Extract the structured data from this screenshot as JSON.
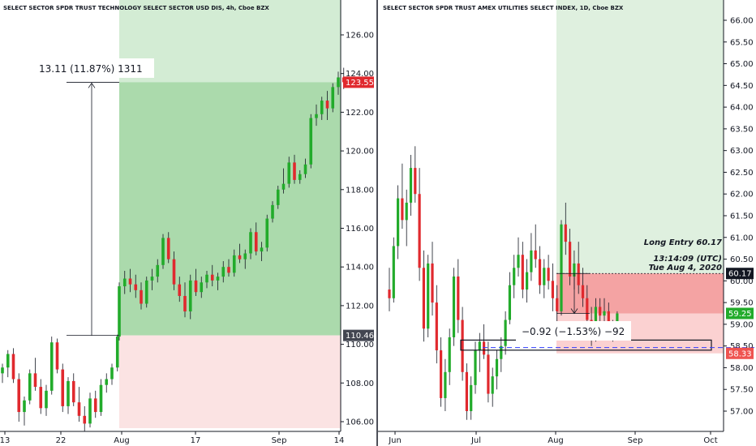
{
  "chart_data": [
    {
      "type": "candlestick",
      "title": "SELECT SECTOR SPDR TRUST TECHNOLOGY SELECT SECTOR USD DIS, 4h, Cboe BZX",
      "y_ticks": [
        "106.00",
        "108.00",
        "110.00",
        "112.00",
        "114.00",
        "116.00",
        "118.00",
        "120.00",
        "122.00",
        "124.00",
        "126.00"
      ],
      "x_ticks": [
        "13",
        "22",
        "Aug",
        "17",
        "Sep",
        "14"
      ],
      "ylim": [
        105.5,
        127.5
      ],
      "last_price": 123.55,
      "last_price_label": "123.55",
      "entry_price": 110.46,
      "entry_price_label": "110.46",
      "measure_text": "13.11 (11.87%) 1311",
      "position": {
        "entry": 110.46,
        "target": 126.0,
        "top_price": 127.5,
        "stop": 105.5
      },
      "candles": [
        [
          108.5,
          109.0,
          108.0,
          108.8
        ],
        [
          108.8,
          109.7,
          108.3,
          109.5
        ],
        [
          109.5,
          109.8,
          108.0,
          108.2
        ],
        [
          108.2,
          108.5,
          106.0,
          106.5
        ],
        [
          106.5,
          107.3,
          105.8,
          107.1
        ],
        [
          107.1,
          108.7,
          106.9,
          108.5
        ],
        [
          108.5,
          109.3,
          107.6,
          107.8
        ],
        [
          107.8,
          108.2,
          106.4,
          106.7
        ],
        [
          106.7,
          107.9,
          106.3,
          107.6
        ],
        [
          107.6,
          110.4,
          107.4,
          110.1
        ],
        [
          110.1,
          110.3,
          108.5,
          108.7
        ],
        [
          108.7,
          109.0,
          106.5,
          106.8
        ],
        [
          106.8,
          108.3,
          106.4,
          108.1
        ],
        [
          108.1,
          108.5,
          106.8,
          107.0
        ],
        [
          107.0,
          107.8,
          106.0,
          106.3
        ],
        [
          106.3,
          106.8,
          105.5,
          105.9
        ],
        [
          105.9,
          107.5,
          105.7,
          107.2
        ],
        [
          107.2,
          107.6,
          106.2,
          106.5
        ],
        [
          106.5,
          108.2,
          106.3,
          107.9
        ],
        [
          107.9,
          108.5,
          107.5,
          108.2
        ],
        [
          108.2,
          109.0,
          107.9,
          108.8
        ],
        [
          108.8,
          110.5,
          108.6,
          110.4
        ],
        [
          110.4,
          113.2,
          110.2,
          113.0
        ],
        [
          113.0,
          113.8,
          112.6,
          113.4
        ],
        [
          113.4,
          113.9,
          112.7,
          113.1
        ],
        [
          113.1,
          113.6,
          112.4,
          112.8
        ],
        [
          112.8,
          113.2,
          111.8,
          112.1
        ],
        [
          112.1,
          113.5,
          111.9,
          113.3
        ],
        [
          113.3,
          113.9,
          112.8,
          113.5
        ],
        [
          113.5,
          114.4,
          113.2,
          114.1
        ],
        [
          114.1,
          115.7,
          113.9,
          115.5
        ],
        [
          115.5,
          115.8,
          114.2,
          114.4
        ],
        [
          114.4,
          114.8,
          112.8,
          113.1
        ],
        [
          113.1,
          113.5,
          112.2,
          112.5
        ],
        [
          112.5,
          113.2,
          111.4,
          111.7
        ],
        [
          111.7,
          113.6,
          111.3,
          113.3
        ],
        [
          113.3,
          113.9,
          112.5,
          112.7
        ],
        [
          112.7,
          113.5,
          112.4,
          113.2
        ],
        [
          113.2,
          113.8,
          112.9,
          113.6
        ],
        [
          113.6,
          114.1,
          113.0,
          113.3
        ],
        [
          113.3,
          113.7,
          112.8,
          113.5
        ],
        [
          113.5,
          114.3,
          113.2,
          114.0
        ],
        [
          114.0,
          114.4,
          113.5,
          113.7
        ],
        [
          113.7,
          114.9,
          113.5,
          114.6
        ],
        [
          114.6,
          115.2,
          114.2,
          114.4
        ],
        [
          114.4,
          114.9,
          113.9,
          114.7
        ],
        [
          114.7,
          116.0,
          114.4,
          115.8
        ],
        [
          115.8,
          116.3,
          114.6,
          114.8
        ],
        [
          114.8,
          115.3,
          114.3,
          115.0
        ],
        [
          115.0,
          116.7,
          114.8,
          116.5
        ],
        [
          116.5,
          117.4,
          116.3,
          117.2
        ],
        [
          117.2,
          118.2,
          117.0,
          118.0
        ],
        [
          118.0,
          119.1,
          117.8,
          118.3
        ],
        [
          118.3,
          119.7,
          118.1,
          119.4
        ],
        [
          119.4,
          119.8,
          118.3,
          118.5
        ],
        [
          118.5,
          119.0,
          118.3,
          118.8
        ],
        [
          118.8,
          119.6,
          118.6,
          119.3
        ],
        [
          119.3,
          121.9,
          119.1,
          121.7
        ],
        [
          121.7,
          122.4,
          121.3,
          121.9
        ],
        [
          121.9,
          122.8,
          121.6,
          122.6
        ],
        [
          122.6,
          123.1,
          121.6,
          122.2
        ],
        [
          122.2,
          123.5,
          122.0,
          123.3
        ],
        [
          123.3,
          124.1,
          122.9,
          123.8
        ],
        [
          123.8,
          124.3,
          123.2,
          123.55
        ]
      ]
    },
    {
      "type": "candlestick",
      "title": "SELECT SECTOR SPDR TRUST AMEX UTILITIES SELECT INDEX, 1D, Cboe BZX",
      "y_ticks": [
        "57.00",
        "57.50",
        "58.00",
        "58.50",
        "59.00",
        "59.50",
        "60.00",
        "60.50",
        "61.00",
        "61.50",
        "62.00",
        "62.50",
        "63.00",
        "63.50",
        "64.00",
        "64.50",
        "65.00",
        "65.50",
        "66.00"
      ],
      "x_ticks": [
        "Jun",
        "Jul",
        "Aug",
        "Sep",
        "Oct"
      ],
      "ylim": [
        56.8,
        66.4
      ],
      "last_price": 59.25,
      "last_price_label": "59.25",
      "entry_price": 60.17,
      "entry_price_label": "60.17",
      "stop_price": 58.33,
      "stop_price_label": "58.33",
      "hline_price": 58.5,
      "box": [
        58.46,
        58.58
      ],
      "measure_text": "−0.92 (−1.53%) −92",
      "annotations": [
        "Long Entry 60.17",
        "13:14:09 (UTC)",
        "Tue Aug 4, 2020"
      ],
      "position": {
        "entry": 60.17,
        "target": 66.4,
        "stop": 58.33
      },
      "candles": [
        [
          59.8,
          60.3,
          59.3,
          59.6
        ],
        [
          59.6,
          61.0,
          59.5,
          60.8
        ],
        [
          60.8,
          62.2,
          60.5,
          61.9
        ],
        [
          61.9,
          62.7,
          61.2,
          61.4
        ],
        [
          61.4,
          62.1,
          60.8,
          61.8
        ],
        [
          61.8,
          62.9,
          61.5,
          62.6
        ],
        [
          62.6,
          63.1,
          61.8,
          62.0
        ],
        [
          62.0,
          62.6,
          60.0,
          60.3
        ],
        [
          60.3,
          60.7,
          58.6,
          58.9
        ],
        [
          58.9,
          60.6,
          58.7,
          60.4
        ],
        [
          60.4,
          60.9,
          59.2,
          59.5
        ],
        [
          59.5,
          59.9,
          58.1,
          58.4
        ],
        [
          58.4,
          58.7,
          57.1,
          57.3
        ],
        [
          57.3,
          58.2,
          57.0,
          57.9
        ],
        [
          57.9,
          58.9,
          57.6,
          58.7
        ],
        [
          58.7,
          60.3,
          58.5,
          60.1
        ],
        [
          60.1,
          60.5,
          58.8,
          59.1
        ],
        [
          59.1,
          59.4,
          57.7,
          57.9
        ],
        [
          57.9,
          58.1,
          56.8,
          57.0
        ],
        [
          57.0,
          57.8,
          56.8,
          57.6
        ],
        [
          57.6,
          58.6,
          57.4,
          58.4
        ],
        [
          58.4,
          58.8,
          57.9,
          58.6
        ],
        [
          58.6,
          59.0,
          58.2,
          58.3
        ],
        [
          58.3,
          58.6,
          57.2,
          57.4
        ],
        [
          57.4,
          58.0,
          57.1,
          57.8
        ],
        [
          57.8,
          58.4,
          57.5,
          58.2
        ],
        [
          58.2,
          58.7,
          57.9,
          58.5
        ],
        [
          58.5,
          59.3,
          58.3,
          59.1
        ],
        [
          59.1,
          60.2,
          59.0,
          59.9
        ],
        [
          59.9,
          60.6,
          59.6,
          60.3
        ],
        [
          60.3,
          61.0,
          60.1,
          60.6
        ],
        [
          60.6,
          60.9,
          59.6,
          59.8
        ],
        [
          59.8,
          60.5,
          59.5,
          60.2
        ],
        [
          60.2,
          61.1,
          60.0,
          60.7
        ],
        [
          60.7,
          61.3,
          60.3,
          60.5
        ],
        [
          60.5,
          60.8,
          59.7,
          59.9
        ],
        [
          59.9,
          60.5,
          59.6,
          60.3
        ],
        [
          60.3,
          60.6,
          59.8,
          60.0
        ],
        [
          60.0,
          60.4,
          59.3,
          59.6
        ],
        [
          59.6,
          59.9,
          59.0,
          59.3
        ],
        [
          59.3,
          61.4,
          59.2,
          61.3
        ],
        [
          61.3,
          61.8,
          60.6,
          60.9
        ],
        [
          60.9,
          61.2,
          59.9,
          60.1
        ],
        [
          60.1,
          60.7,
          59.8,
          60.4
        ],
        [
          60.4,
          60.9,
          59.7,
          59.9
        ],
        [
          59.9,
          60.3,
          59.4,
          59.6
        ],
        [
          59.6,
          59.9,
          58.9,
          59.1
        ],
        [
          59.1,
          59.4,
          58.5,
          58.8
        ],
        [
          58.8,
          59.6,
          58.6,
          59.4
        ],
        [
          59.4,
          59.6,
          59.0,
          59.2
        ],
        [
          59.2,
          59.6,
          59.0,
          59.3
        ],
        [
          59.3,
          59.5,
          58.7,
          58.8
        ],
        [
          58.8,
          59.1,
          58.6,
          58.9
        ],
        [
          58.9,
          59.3,
          58.8,
          59.25
        ]
      ]
    }
  ]
}
